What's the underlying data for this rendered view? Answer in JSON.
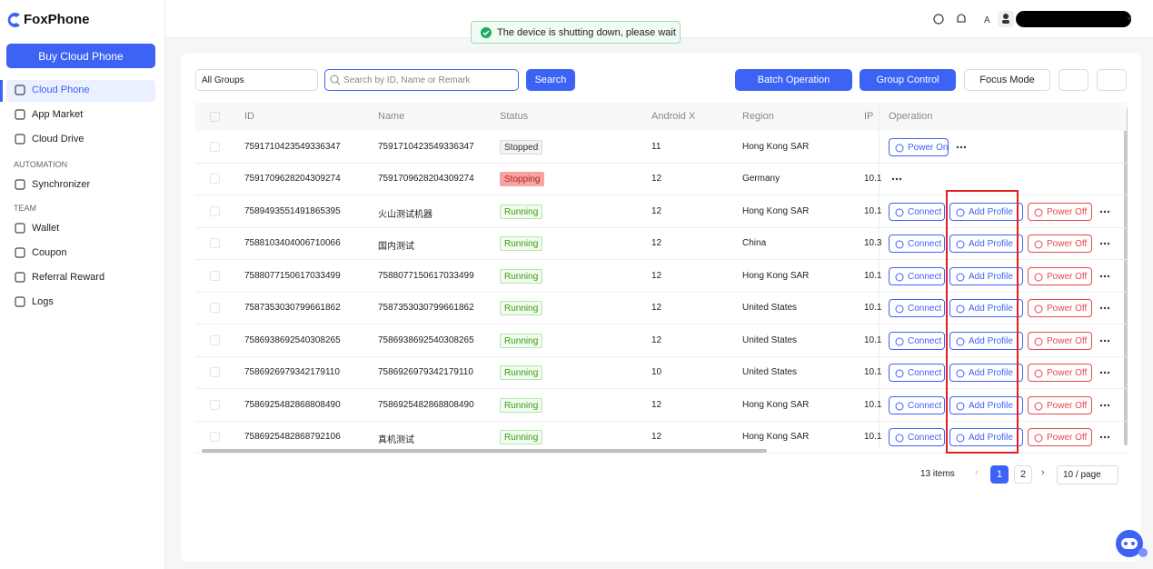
{
  "sidebar": {
    "logo": "FoxPhone",
    "buy_button": "Buy Cloud Phone",
    "nav": [
      "Cloud Phone",
      "App Market",
      "Cloud Drive"
    ],
    "active": 0,
    "automation": {
      "heading": "AUTOMATION",
      "items": [
        "Synchronizer"
      ]
    },
    "team": {
      "heading": "TEAM",
      "items": [
        "Wallet",
        "Coupon",
        "Referral Reward",
        "Logs"
      ]
    }
  },
  "toast": "The device is shutting down, please wait",
  "toolbar": {
    "group_select": "All Groups",
    "search_placeholder": "Search by ID, Name or Remark",
    "search_button": "Search",
    "batch_button": "Batch Operation",
    "group_control": "Group Control",
    "focus_mode": "Focus Mode"
  },
  "table": {
    "columns": [
      "ID",
      "Name",
      "Status",
      "Android X",
      "Region",
      "IP",
      "Operation"
    ],
    "status_styles": {
      "Stopped": {
        "color": "#333333",
        "background": "#f2f2f2",
        "border": "#d9d9d9"
      },
      "Stopping": {
        "color": "#b42318",
        "background": "#f5a3a3",
        "border": "#f5a3a3"
      },
      "Running": {
        "color": "#389e0d",
        "background": "#f1fbef",
        "border": "#b7e3b0"
      }
    },
    "action_colors": {
      "Power On": "#3d63f5",
      "Connect": "#3d63f5",
      "Add Profile": "#3d63f5",
      "Power Off": "#e5484d"
    },
    "rows": [
      {
        "id": "7591710423549336347",
        "name": "7591710423549336347",
        "status": "Stopped",
        "android": 11,
        "region": "Hong Kong SAR",
        "ip": "",
        "actions": [
          "Power On"
        ]
      },
      {
        "id": "7591709628204309274",
        "name": "7591709628204309274",
        "status": "Stopping",
        "android": 12,
        "region": "Germany",
        "ip": "10.1",
        "actions": []
      },
      {
        "id": "7589493551491865395",
        "name": "火山测试机器",
        "status": "Running",
        "android": 12,
        "region": "Hong Kong SAR",
        "ip": "10.1",
        "actions": [
          "Connect",
          "Add Profile",
          "Power Off"
        ]
      },
      {
        "id": "7588103404006710066",
        "name": "国内测试",
        "status": "Running",
        "android": 12,
        "region": "China",
        "ip": "10.3",
        "actions": [
          "Connect",
          "Add Profile",
          "Power Off"
        ]
      },
      {
        "id": "7588077150617033499",
        "name": "7588077150617033499",
        "status": "Running",
        "android": 12,
        "region": "Hong Kong SAR",
        "ip": "10.1",
        "actions": [
          "Connect",
          "Add Profile",
          "Power Off"
        ]
      },
      {
        "id": "7587353030799661862",
        "name": "7587353030799661862",
        "status": "Running",
        "android": 12,
        "region": "United States",
        "ip": "10.1",
        "actions": [
          "Connect",
          "Add Profile",
          "Power Off"
        ]
      },
      {
        "id": "7586938692540308265",
        "name": "7586938692540308265",
        "status": "Running",
        "android": 12,
        "region": "United States",
        "ip": "10.1",
        "actions": [
          "Connect",
          "Add Profile",
          "Power Off"
        ]
      },
      {
        "id": "7586926979342179110",
        "name": "7586926979342179110",
        "status": "Running",
        "android": 10,
        "region": "United States",
        "ip": "10.1",
        "actions": [
          "Connect",
          "Add Profile",
          "Power Off"
        ]
      },
      {
        "id": "7586925482868808490",
        "name": "7586925482868808490",
        "status": "Running",
        "android": 12,
        "region": "Hong Kong SAR",
        "ip": "10.1",
        "actions": [
          "Connect",
          "Add Profile",
          "Power Off"
        ]
      },
      {
        "id": "7586925482868792106",
        "name": "真机测试",
        "status": "Running",
        "android": 12,
        "region": "Hong Kong SAR",
        "ip": "10.1",
        "actions": [
          "Connect",
          "Add Profile",
          "Power Off"
        ]
      }
    ]
  },
  "pagination": {
    "total": "13 items",
    "pages": [
      1,
      2
    ],
    "current": 1,
    "page_size": "10 / page"
  }
}
